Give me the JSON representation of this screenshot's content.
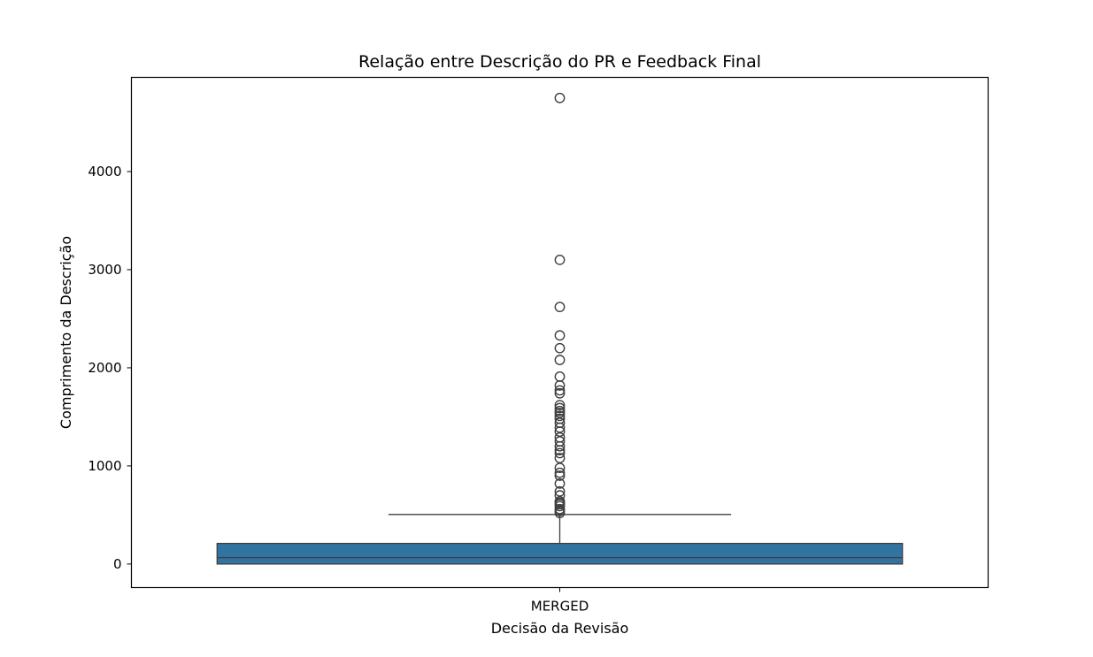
{
  "chart_data": {
    "type": "box",
    "title": "Relação entre Descrição do PR e Feedback Final",
    "xlabel": "Decisão da Revisão",
    "ylabel": "Comprimento da Descrição",
    "categories": [
      "MERGED"
    ],
    "ylim": [
      -240,
      4960
    ],
    "yticks": [
      0,
      1000,
      2000,
      3000,
      4000
    ],
    "yticklabels": [
      "0",
      "1000",
      "2000",
      "3000",
      "4000"
    ],
    "grid": false,
    "boxes": [
      {
        "category": "MERGED",
        "whisker_low": 0,
        "q1": 0,
        "median": 65,
        "q3": 210,
        "whisker_high": 505,
        "color": "#3274a1",
        "outliers": [
          520,
          540,
          560,
          590,
          610,
          625,
          640,
          700,
          740,
          820,
          900,
          930,
          980,
          1080,
          1130,
          1160,
          1200,
          1250,
          1290,
          1350,
          1390,
          1440,
          1480,
          1510,
          1540,
          1560,
          1590,
          1620,
          1740,
          1770,
          1820,
          1910,
          2080,
          2200,
          2330,
          2620,
          3100,
          4750
        ]
      }
    ]
  }
}
